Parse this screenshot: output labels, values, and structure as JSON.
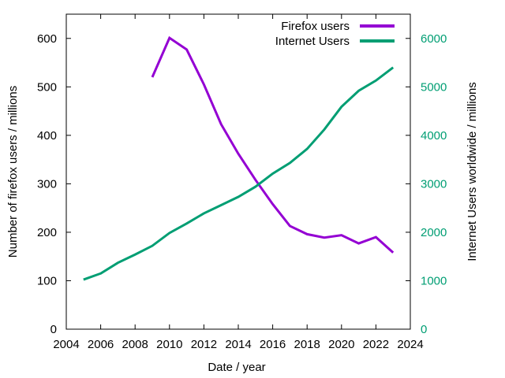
{
  "chart_data": {
    "type": "line",
    "xlabel": "Date / year",
    "ylabel": "Number of firefox users / millions",
    "y2label": "Internet Users worldwide / millions",
    "xlim": [
      2004,
      2024
    ],
    "ylim": [
      0,
      650
    ],
    "y2lim": [
      0,
      6500
    ],
    "xticks": [
      2004,
      2006,
      2008,
      2010,
      2012,
      2014,
      2016,
      2018,
      2020,
      2022,
      2024
    ],
    "yticks": [
      0,
      100,
      200,
      300,
      400,
      500,
      600
    ],
    "y2ticks": [
      0,
      1000,
      2000,
      3000,
      4000,
      5000,
      6000
    ],
    "grid": false,
    "legend_placement": "top-right",
    "series": [
      {
        "name": "Firefox users",
        "axis": "left",
        "color": "#9400d3",
        "x": [
          2009,
          2010,
          2011,
          2012,
          2013,
          2014,
          2015,
          2016,
          2017,
          2018,
          2019,
          2020,
          2021,
          2022,
          2023
        ],
        "values": [
          520,
          601,
          577,
          505,
          423,
          362,
          308,
          258,
          213,
          196,
          189,
          194,
          177,
          190,
          158
        ]
      },
      {
        "name": "Internet Users",
        "axis": "right",
        "color": "#009e73",
        "x": [
          2005,
          2006,
          2007,
          2008,
          2009,
          2010,
          2011,
          2012,
          2013,
          2014,
          2015,
          2016,
          2017,
          2018,
          2019,
          2020,
          2021,
          2022,
          2023
        ],
        "values": [
          1023,
          1150,
          1370,
          1540,
          1720,
          1985,
          2180,
          2390,
          2560,
          2730,
          2940,
          3210,
          3430,
          3720,
          4120,
          4590,
          4920,
          5130,
          5400
        ]
      }
    ]
  }
}
